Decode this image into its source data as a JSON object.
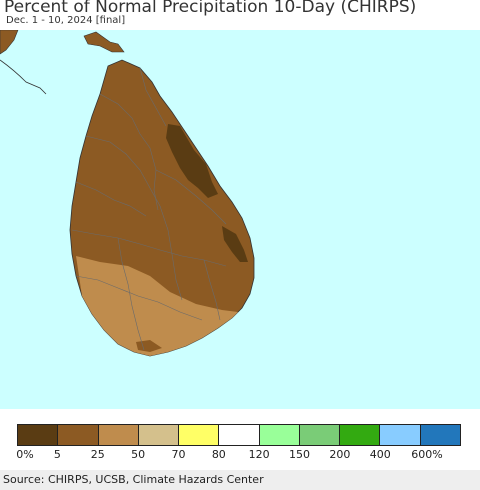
{
  "header": {
    "title": "Percent of Normal Precipitation 10-Day (CHIRPS)",
    "subtitle": "Dec. 1 - 10, 2024 [final]"
  },
  "legend": {
    "colors": [
      "#5a3c13",
      "#8c5a23",
      "#bf8c4d",
      "#d4c08c",
      "#ffff66",
      "#ffffff",
      "#99ff99",
      "#7acc77",
      "#33aa11",
      "#88ccff",
      "#2277bb"
    ],
    "labels": [
      "0%",
      "5",
      "25",
      "50",
      "70",
      "80",
      "120",
      "150",
      "200",
      "400",
      "600%"
    ]
  },
  "footer": {
    "source": "Source: CHIRPS, UCSB, Climate Hazards Center"
  }
}
